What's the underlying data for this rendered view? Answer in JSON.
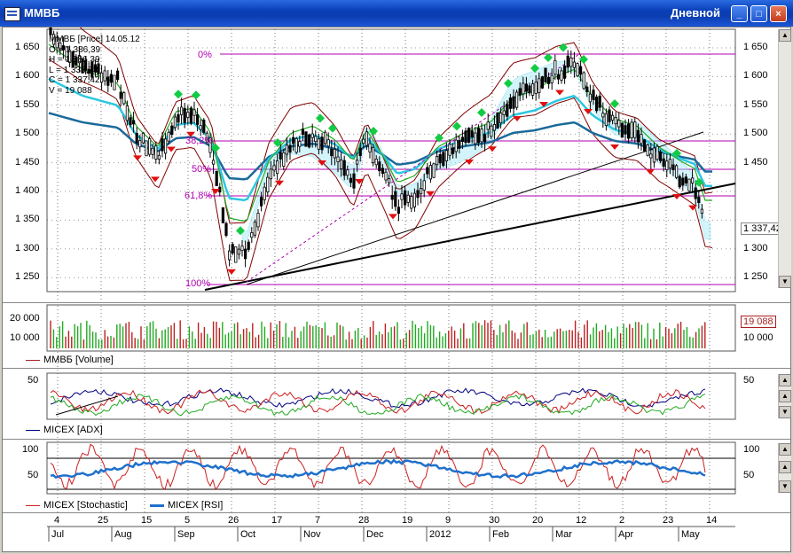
{
  "window": {
    "title": "ММВБ",
    "period": "Дневной",
    "controls": {
      "minimize": "_",
      "maximize": "□",
      "close": "×"
    }
  },
  "price_pane": {
    "info": [
      "ММВБ [Price] 14.05.12",
      "O = 1 386,39",
      "H = 1 386,39",
      "L = 1 333,73",
      "C = 1 337,42",
      "V = 19 088"
    ],
    "y_ticks": [
      "1 650",
      "1 600",
      "1 550",
      "1 500",
      "1 450",
      "1 400",
      "1 350",
      "1 300",
      "1 250"
    ],
    "fib_levels": [
      "0%",
      "38,2%",
      "50%",
      "61,8%",
      "100%"
    ],
    "last_price": "1 337,42",
    "colors": {
      "candle": "#000000",
      "fib": "#b000b0",
      "ma_long": "#1a6a9a",
      "ma_mid": "#2cc8e0",
      "bands": "#800000",
      "signal_up": "#11cc44",
      "signal_down": "#e01010"
    }
  },
  "volume_pane": {
    "y_ticks": [
      "20 000",
      "10 000"
    ],
    "last_value": "19 088",
    "legend": "ММВБ [Volume]",
    "legend_color": "#aa2020"
  },
  "adx_pane": {
    "y_ticks": [
      "50"
    ],
    "legend": "MICEX [ADX]",
    "legend_color": "#000080"
  },
  "osc_pane": {
    "y_ticks": [
      "100",
      "50"
    ],
    "legend_stoch": "MICEX [Stochastic]",
    "legend_rsi": "MICEX [RSI]",
    "stoch_color": "#cc2020",
    "rsi_color": "#2070cc"
  },
  "time_axis": {
    "days": [
      "4",
      "25",
      "15",
      "5",
      "26",
      "17",
      "7",
      "28",
      "19",
      "9",
      "30",
      "20",
      "12",
      "2",
      "23",
      "14"
    ],
    "months": [
      "Jul",
      "Aug",
      "Sep",
      "Oct",
      "Nov",
      "Dec",
      "2012",
      "Feb",
      "Mar",
      "Apr",
      "May"
    ]
  }
}
